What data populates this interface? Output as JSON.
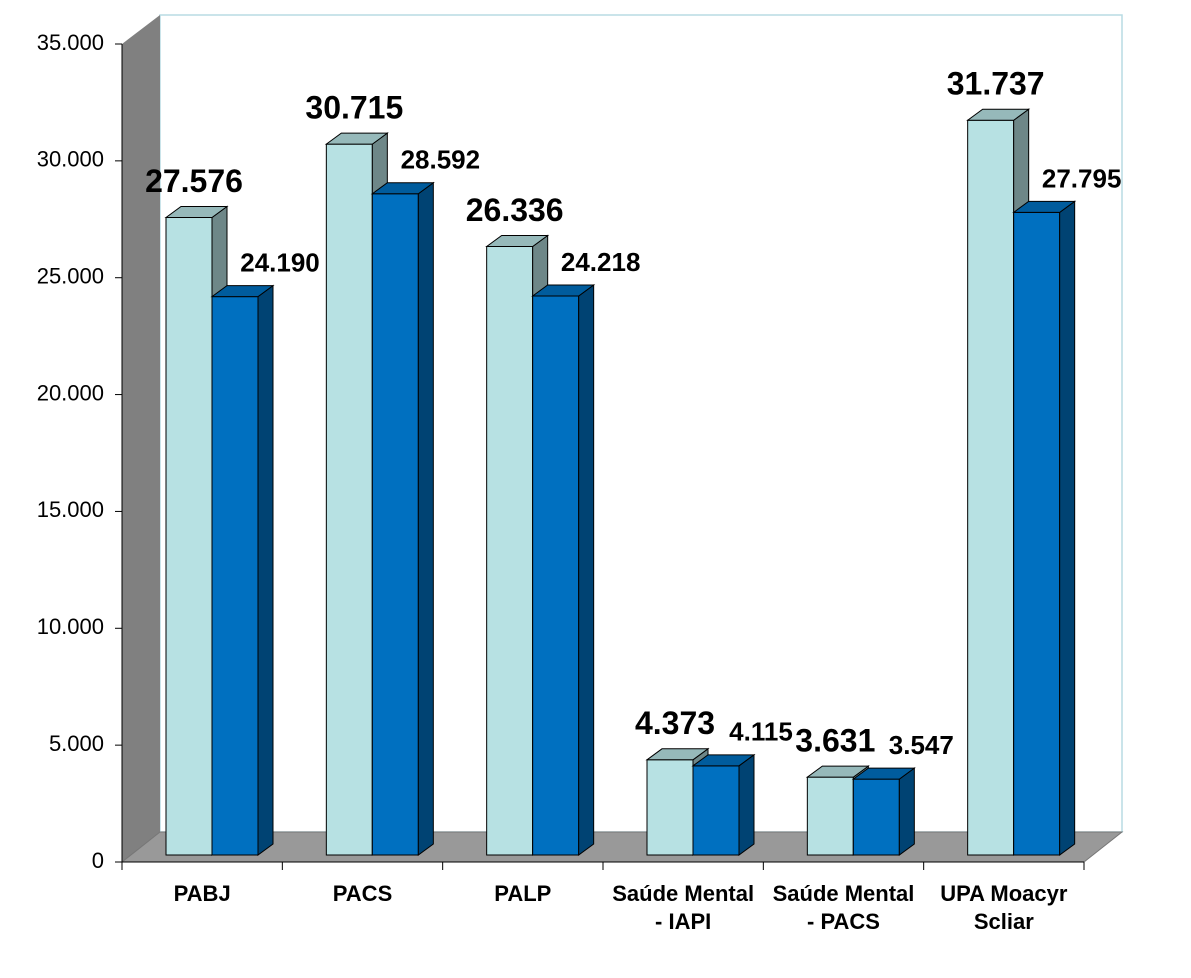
{
  "chart_data": {
    "type": "bar3d",
    "categories": [
      "PABJ",
      "PACS",
      "PALP",
      "Saúde Mental - IAPI",
      "Saúde Mental - PACS",
      "UPA Moacyr Scliar"
    ],
    "series": [
      {
        "color": "#b7e1e3",
        "values": [
          27576,
          30715,
          26336,
          4373,
          3631,
          31737
        ],
        "value_labels": [
          "27.576",
          "30.715",
          "26.336",
          "4.373",
          "3.631",
          "31.737"
        ]
      },
      {
        "color": "#0070c0",
        "values": [
          24190,
          28592,
          24218,
          4115,
          3547,
          27795
        ],
        "value_labels": [
          "24.190",
          "28.592",
          "24.218",
          "4.115",
          "3.547",
          "27.795"
        ]
      }
    ],
    "ylim": [
      0,
      35000
    ],
    "yticks": [
      0,
      {
        "value": 5000,
        "label": "5.000"
      },
      {
        "value": 10000,
        "label": "10.000"
      },
      {
        "value": 15000,
        "label": "15.000"
      },
      {
        "value": 20000,
        "label": "20.000"
      },
      {
        "value": 25000,
        "label": "25.000"
      },
      {
        "value": 30000,
        "label": "30.000"
      },
      {
        "value": 35000,
        "label": "35.000"
      }
    ],
    "grid": false
  }
}
